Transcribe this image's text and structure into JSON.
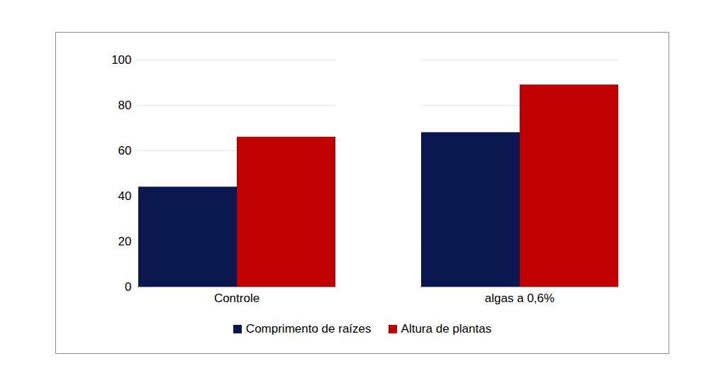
{
  "chart_data": {
    "type": "bar",
    "categories": [
      "Controle",
      "algas a 0,6%"
    ],
    "series": [
      {
        "name": "Comprimento de raízes",
        "color": "#0b1850",
        "values": [
          44,
          68
        ]
      },
      {
        "name": "Altura de plantas",
        "color": "#c00000",
        "values": [
          66,
          89
        ]
      }
    ],
    "ylim": [
      0,
      100
    ],
    "yticks": [
      0,
      20,
      40,
      60,
      80,
      100
    ],
    "grid": true,
    "legend": "bottom"
  }
}
